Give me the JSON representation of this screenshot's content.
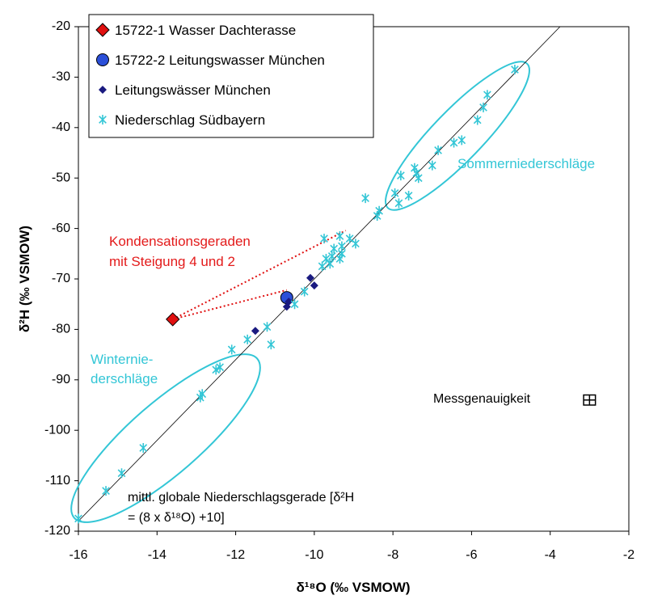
{
  "chart_data": {
    "type": "scatter",
    "x_label": "δ¹⁸O (‰ VSMOW)",
    "y_label": "δ²H (‰ VSMOW)",
    "xlim": [
      -16,
      -2
    ],
    "ylim": [
      -120,
      -20
    ],
    "xticks": [
      -16,
      -14,
      -12,
      -10,
      -8,
      -6,
      -4,
      -2
    ],
    "yticks": [
      -120,
      -110,
      -100,
      -90,
      -80,
      -70,
      -60,
      -50,
      -40,
      -30,
      -20
    ],
    "grid": false,
    "legend": "upper left",
    "series": [
      {
        "name": "15722-1 Wasser Dachterasse",
        "marker": "diamond",
        "color": "#e01010",
        "x": [
          -13.6
        ],
        "y": [
          -78
        ]
      },
      {
        "name": "15722-2 Leitungswasser München",
        "marker": "circle",
        "color": "#2b4fd8",
        "x": [
          -10.7
        ],
        "y": [
          -73.7
        ]
      },
      {
        "name": "Leitungswässer München",
        "marker": "small-diamond",
        "color": "#1a1a80",
        "x": [
          -11.5,
          -10.7,
          -10.65,
          -10.1,
          -10.0
        ],
        "y": [
          -80.3,
          -75.5,
          -74.5,
          -69.8,
          -71.3
        ]
      },
      {
        "name": "Niederschlag Südbayern",
        "marker": "asterisk",
        "color": "#33c6d6",
        "x": [
          -16,
          -15.3,
          -14.9,
          -14.35,
          -12.9,
          -12.85,
          -12.5,
          -12.4,
          -12.1,
          -11.7,
          -11.2,
          -11.1,
          -10.5,
          -10.25,
          -9.8,
          -9.7,
          -9.6,
          -9.55,
          -9.5,
          -9.35,
          -9.3,
          -9.3,
          -9.1,
          -8.95,
          -9.35,
          -9.75,
          -8.7,
          -8.4,
          -8.35,
          -7.95,
          -7.85,
          -7.8,
          -7.6,
          -7.45,
          -7.4,
          -7.35,
          -7.0,
          -6.85,
          -6.45,
          -6.25,
          -5.85,
          -5.7,
          -5.6,
          -4.9
        ],
        "y": [
          -117.5,
          -112,
          -108.5,
          -103.5,
          -93.5,
          -92.8,
          -88,
          -87.5,
          -84,
          -82,
          -79.5,
          -83,
          -75,
          -72.5,
          -67.5,
          -66,
          -67,
          -65.5,
          -64,
          -66,
          -65,
          -63.5,
          -62,
          -63,
          -61.5,
          -62,
          -54,
          -57.5,
          -56.5,
          -53,
          -55,
          -49.5,
          -53.5,
          -48,
          -49,
          -50,
          -47.5,
          -44.5,
          -43,
          -42.5,
          -38.5,
          -36,
          -33.5,
          -28.5
        ]
      }
    ],
    "reference_line": {
      "x": [
        -16,
        -3.75
      ],
      "y": [
        -118,
        -20
      ]
    },
    "condensation_lines": [
      {
        "x": [
          -13.6,
          -9.2
        ],
        "y": [
          -78,
          -60.4
        ]
      },
      {
        "x": [
          -13.6,
          -10.7
        ],
        "y": [
          -78,
          -72.2
        ]
      }
    ],
    "precision": {
      "label": "Messgenauigkeit",
      "x": -3,
      "y": -94,
      "x_err": 0.15,
      "y_err": 1
    },
    "annotations": {
      "summer": "Sommerniederschläge",
      "winter": [
        "Winternie-",
        "derschläge"
      ],
      "condensation": [
        "Kondensationsgeraden",
        "mit Steigung 4 und 2"
      ],
      "gmwl": [
        "mittl. globale Niederschlagsgerade [δ²H",
        "= (8 x δ¹⁸O)  +10]"
      ]
    }
  }
}
